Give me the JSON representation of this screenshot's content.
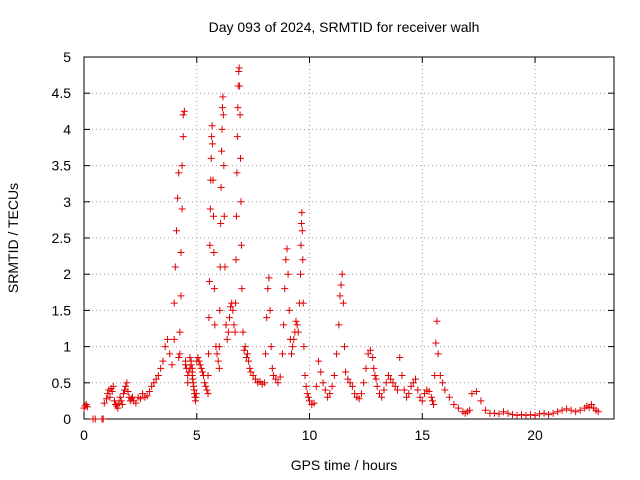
{
  "chart_data": {
    "type": "scatter",
    "title": "Day 093 of 2024, SRMTID for receiver walh",
    "xlabel": "GPS time / hours",
    "ylabel": "SRMTID / TECUs",
    "xlim": [
      0,
      23.5
    ],
    "ylim": [
      0,
      5
    ],
    "xticks": [
      0,
      5,
      10,
      15,
      20
    ],
    "xtick_labels": [
      "0",
      "5",
      "10",
      "15",
      "20"
    ],
    "yticks": [
      0,
      0.5,
      1,
      1.5,
      2,
      2.5,
      3,
      3.5,
      4,
      4.5,
      5
    ],
    "ytick_labels": [
      "0",
      "0.5",
      "1",
      "1.5",
      "2",
      "2.5",
      "3",
      "3.5",
      "4",
      "4.5",
      "5"
    ],
    "grid": true,
    "marker": "plus",
    "color": "#e00000",
    "series": [
      {
        "name": "SRMTID",
        "x": [
          0.0,
          0.05,
          0.1,
          0.15,
          0.4,
          0.5,
          0.8,
          0.85,
          0.9,
          1.0,
          1.05,
          1.1,
          1.15,
          1.2,
          1.25,
          1.3,
          1.35,
          1.4,
          1.45,
          1.5,
          1.55,
          1.6,
          1.65,
          1.7,
          1.75,
          1.8,
          1.85,
          1.9,
          1.95,
          2.0,
          2.05,
          2.1,
          2.15,
          2.2,
          2.3,
          2.4,
          2.5,
          2.6,
          2.7,
          2.8,
          2.9,
          3.0,
          3.1,
          3.2,
          3.3,
          3.4,
          3.5,
          3.6,
          3.7,
          3.8,
          3.9,
          4.0,
          4.0,
          4.05,
          4.1,
          4.15,
          4.2,
          4.2,
          4.25,
          4.25,
          4.3,
          4.3,
          4.35,
          4.35,
          4.4,
          4.4,
          4.45,
          4.5,
          4.5,
          4.55,
          4.6,
          4.6,
          4.65,
          4.7,
          4.7,
          4.75,
          4.75,
          4.8,
          4.8,
          4.8,
          4.82,
          4.84,
          4.86,
          4.88,
          4.9,
          4.92,
          4.94,
          4.96,
          4.98,
          5.0,
          5.05,
          5.1,
          5.15,
          5.2,
          5.25,
          5.3,
          5.35,
          5.4,
          5.45,
          5.5,
          5.5,
          5.52,
          5.54,
          5.56,
          5.58,
          5.6,
          5.62,
          5.64,
          5.66,
          5.68,
          5.7,
          5.72,
          5.74,
          5.76,
          5.78,
          5.8,
          5.85,
          5.9,
          5.95,
          6.0,
          6.0,
          6.02,
          6.04,
          6.06,
          6.08,
          6.1,
          6.12,
          6.14,
          6.16,
          6.18,
          6.2,
          6.22,
          6.25,
          6.3,
          6.35,
          6.4,
          6.45,
          6.5,
          6.55,
          6.6,
          6.65,
          6.7,
          6.72,
          6.74,
          6.76,
          6.78,
          6.8,
          6.82,
          6.84,
          6.86,
          6.88,
          6.9,
          6.92,
          6.94,
          6.96,
          6.98,
          7.0,
          7.05,
          7.1,
          7.15,
          7.2,
          7.25,
          7.3,
          7.35,
          7.4,
          7.5,
          7.6,
          7.7,
          7.8,
          7.9,
          8.0,
          8.05,
          8.1,
          8.15,
          8.2,
          8.25,
          8.3,
          8.35,
          8.4,
          8.5,
          8.6,
          8.7,
          8.8,
          8.85,
          8.9,
          8.95,
          9.0,
          9.05,
          9.1,
          9.15,
          9.2,
          9.25,
          9.3,
          9.35,
          9.4,
          9.45,
          9.5,
          9.55,
          9.6,
          9.62,
          9.64,
          9.66,
          9.68,
          9.7,
          9.72,
          9.75,
          9.8,
          9.85,
          9.9,
          9.95,
          10.0,
          10.1,
          10.2,
          10.3,
          10.4,
          10.5,
          10.6,
          10.7,
          10.8,
          10.9,
          11.0,
          11.1,
          11.2,
          11.3,
          11.35,
          11.4,
          11.45,
          11.5,
          11.55,
          11.6,
          11.7,
          11.8,
          11.9,
          12.0,
          12.1,
          12.2,
          12.3,
          12.4,
          12.5,
          12.6,
          12.7,
          12.8,
          12.85,
          12.9,
          12.95,
          13.0,
          13.1,
          13.2,
          13.3,
          13.4,
          13.5,
          13.6,
          13.7,
          13.8,
          13.9,
          14.0,
          14.1,
          14.2,
          14.3,
          14.4,
          14.5,
          14.6,
          14.7,
          14.8,
          14.9,
          15.0,
          15.1,
          15.2,
          15.3,
          15.4,
          15.45,
          15.5,
          15.55,
          15.6,
          15.65,
          15.7,
          15.8,
          15.9,
          16.0,
          16.2,
          16.4,
          16.6,
          16.8,
          16.9,
          17.0,
          17.1,
          17.2,
          17.4,
          17.6,
          17.8,
          18.0,
          18.2,
          18.4,
          18.6,
          18.8,
          19.0,
          19.2,
          19.4,
          19.6,
          19.8,
          20.0,
          20.2,
          20.4,
          20.6,
          20.8,
          21.0,
          21.2,
          21.4,
          21.6,
          21.8,
          22.0,
          22.2,
          22.3,
          22.4,
          22.5,
          22.6,
          22.7,
          22.8
        ],
        "y": [
          0.15,
          0.18,
          0.2,
          0.17,
          0.0,
          0.0,
          0.0,
          0.0,
          0.22,
          0.28,
          0.35,
          0.4,
          0.3,
          0.42,
          0.38,
          0.45,
          0.25,
          0.2,
          0.18,
          0.15,
          0.22,
          0.3,
          0.25,
          0.2,
          0.35,
          0.4,
          0.45,
          0.5,
          0.38,
          0.3,
          0.25,
          0.28,
          0.3,
          0.25,
          0.22,
          0.3,
          0.28,
          0.35,
          0.3,
          0.32,
          0.38,
          0.45,
          0.5,
          0.55,
          0.6,
          0.7,
          0.8,
          1.0,
          1.1,
          0.9,
          0.75,
          1.1,
          1.6,
          2.1,
          2.6,
          3.05,
          3.4,
          0.85,
          0.9,
          1.2,
          1.7,
          2.3,
          2.9,
          3.5,
          3.9,
          4.2,
          4.25,
          0.8,
          0.75,
          0.7,
          0.5,
          0.6,
          0.65,
          0.7,
          0.85,
          0.8,
          0.75,
          0.7,
          0.65,
          0.6,
          0.55,
          0.5,
          0.45,
          0.4,
          0.35,
          0.3,
          0.25,
          0.3,
          0.35,
          0.8,
          0.85,
          0.8,
          0.75,
          0.7,
          0.65,
          0.6,
          0.5,
          0.45,
          0.4,
          0.35,
          0.6,
          0.9,
          1.4,
          1.9,
          2.4,
          2.9,
          3.3,
          3.6,
          3.9,
          4.05,
          3.8,
          3.3,
          2.8,
          2.3,
          1.8,
          1.3,
          1.0,
          0.9,
          0.8,
          0.7,
          1.0,
          1.5,
          2.1,
          2.7,
          3.2,
          3.7,
          4.0,
          4.3,
          4.45,
          4.2,
          3.5,
          2.8,
          2.1,
          1.3,
          1.1,
          1.2,
          1.4,
          1.55,
          1.6,
          1.5,
          1.3,
          1.2,
          1.6,
          2.2,
          2.8,
          3.4,
          3.9,
          4.3,
          4.6,
          4.8,
          4.85,
          4.6,
          4.2,
          3.6,
          3.0,
          2.4,
          1.8,
          1.2,
          0.95,
          1.0,
          0.85,
          0.9,
          0.8,
          0.7,
          0.65,
          0.6,
          0.55,
          0.5,
          0.52,
          0.48,
          0.5,
          0.9,
          1.4,
          1.8,
          1.95,
          1.5,
          1.0,
          0.7,
          0.6,
          0.55,
          0.5,
          0.58,
          0.9,
          1.3,
          1.8,
          2.2,
          2.35,
          2.0,
          1.5,
          1.1,
          0.9,
          1.0,
          1.1,
          1.2,
          1.35,
          1.3,
          1.2,
          1.6,
          2.0,
          2.4,
          2.7,
          2.85,
          2.6,
          2.2,
          1.6,
          1.0,
          0.6,
          0.45,
          0.35,
          0.3,
          0.25,
          0.2,
          0.22,
          0.45,
          0.8,
          0.65,
          0.5,
          0.4,
          0.3,
          0.35,
          0.45,
          0.6,
          0.9,
          1.3,
          1.7,
          1.85,
          2.0,
          1.6,
          1.0,
          0.65,
          0.55,
          0.5,
          0.45,
          0.35,
          0.3,
          0.28,
          0.35,
          0.5,
          0.7,
          0.9,
          0.95,
          0.85,
          0.7,
          0.6,
          0.55,
          0.45,
          0.35,
          0.3,
          0.4,
          0.5,
          0.6,
          0.55,
          0.5,
          0.45,
          0.4,
          0.85,
          0.6,
          0.4,
          0.3,
          0.35,
          0.45,
          0.5,
          0.55,
          0.4,
          0.3,
          0.25,
          0.35,
          0.4,
          0.38,
          0.3,
          0.25,
          0.2,
          0.6,
          1.05,
          1.35,
          0.9,
          0.6,
          0.5,
          0.4,
          0.3,
          0.2,
          0.15,
          0.1,
          0.08,
          0.1,
          0.12,
          0.35,
          0.38,
          0.25,
          0.12,
          0.08,
          0.08,
          0.07,
          0.1,
          0.08,
          0.06,
          0.05,
          0.06,
          0.05,
          0.06,
          0.05,
          0.07,
          0.08,
          0.06,
          0.08,
          0.1,
          0.12,
          0.14,
          0.12,
          0.1,
          0.12,
          0.15,
          0.18,
          0.16,
          0.2,
          0.15,
          0.12,
          0.1
        ]
      }
    ]
  }
}
